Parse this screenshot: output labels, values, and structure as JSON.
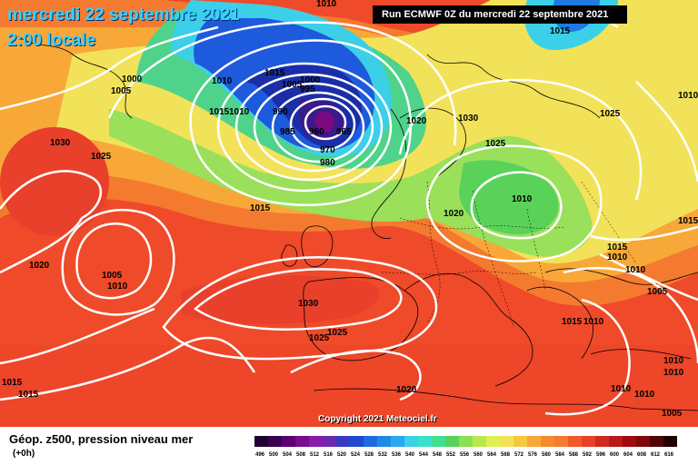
{
  "header": {
    "date_line": "mercredi 22 septembre 2021",
    "time_line": "2:00 locale",
    "run_info": "Run ECMWF 0Z du mercredi 22 septembre 2021"
  },
  "map": {
    "copyright": "Copyright 2021 Meteociel.fr",
    "isobar_labels": [
      "1010",
      "1015",
      "1000",
      "1005",
      "1030",
      "1025",
      "1015",
      "1010",
      "1015",
      "1005",
      "1000",
      "995",
      "990",
      "985",
      "975",
      "960",
      "965",
      "970",
      "980",
      "1020",
      "1030",
      "1025",
      "1015",
      "1010",
      "1020",
      "1025",
      "1010",
      "1015",
      "1020",
      "1005",
      "1010",
      "1030",
      "1025",
      "1025",
      "1015",
      "1010",
      "1005",
      "1015",
      "1020",
      "1010",
      "1005",
      "1010",
      "1015",
      "1010",
      "1005",
      "1015"
    ],
    "colors": {
      "deep_low": "#5a0a6e",
      "blue": "#1e5adc",
      "cyan": "#3ccfe8",
      "green": "#5ad25a",
      "yellow": "#f0e650",
      "orange": "#f5a030",
      "red": "#ef4a2a"
    }
  },
  "legend": {
    "title": "Géop. z500, pression niveau mer",
    "subtitle": "(+0h)",
    "scale_values": [
      "496",
      "500",
      "504",
      "508",
      "512",
      "516",
      "520",
      "524",
      "528",
      "532",
      "536",
      "540",
      "544",
      "548",
      "552",
      "556",
      "560",
      "564",
      "568",
      "572",
      "576",
      "580",
      "584",
      "588",
      "592",
      "596",
      "600",
      "604",
      "608",
      "612",
      "616"
    ]
  }
}
